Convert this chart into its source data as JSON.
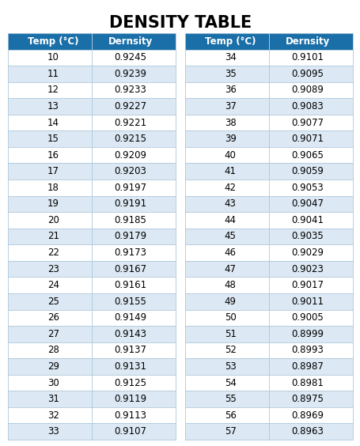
{
  "title": "DENSITY TABLE",
  "col_headers": [
    "Temp (°C)",
    "Dernsity"
  ],
  "left_table": {
    "temps": [
      10,
      11,
      12,
      13,
      14,
      15,
      16,
      17,
      18,
      19,
      20,
      21,
      22,
      23,
      24,
      25,
      26,
      27,
      28,
      29,
      30,
      31,
      32,
      33
    ],
    "densities": [
      0.9245,
      0.9239,
      0.9233,
      0.9227,
      0.9221,
      0.9215,
      0.9209,
      0.9203,
      0.9197,
      0.9191,
      0.9185,
      0.9179,
      0.9173,
      0.9167,
      0.9161,
      0.9155,
      0.9149,
      0.9143,
      0.9137,
      0.9131,
      0.9125,
      0.9119,
      0.9113,
      0.9107
    ]
  },
  "right_table": {
    "temps": [
      34,
      35,
      36,
      37,
      38,
      39,
      40,
      41,
      42,
      43,
      44,
      45,
      46,
      47,
      48,
      49,
      50,
      51,
      52,
      53,
      54,
      55,
      56,
      57
    ],
    "densities": [
      0.9101,
      0.9095,
      0.9089,
      0.9083,
      0.9077,
      0.9071,
      0.9065,
      0.9059,
      0.9053,
      0.9047,
      0.9041,
      0.9035,
      0.9029,
      0.9023,
      0.9017,
      0.9011,
      0.9005,
      0.8999,
      0.8993,
      0.8987,
      0.8981,
      0.8975,
      0.8969,
      0.8963
    ]
  },
  "header_bg": "#1a6fa8",
  "header_text_color": "#ffffff",
  "row_bg_white": "#ffffff",
  "row_bg_blue": "#dce8f3",
  "border_color": "#aec8dc",
  "title_fontsize": 15,
  "header_fontsize": 8.5,
  "cell_fontsize": 8.5,
  "bg_color": "#ffffff"
}
